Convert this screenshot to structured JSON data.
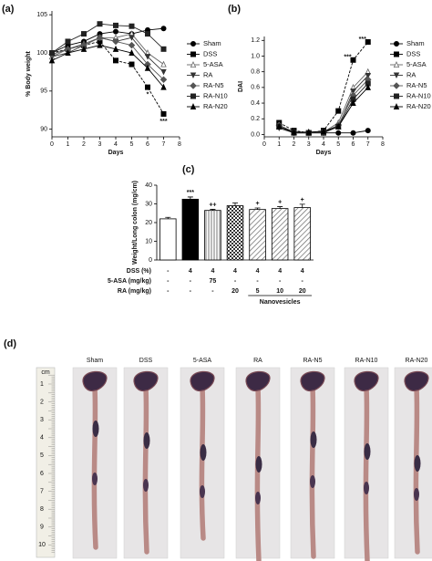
{
  "chart_data": [
    {
      "type": "line",
      "panel": "(a)",
      "xlabel": "Days",
      "ylabel": "% Body weight",
      "x": [
        0,
        1,
        2,
        3,
        4,
        5,
        6,
        7
      ],
      "xlim": [
        0,
        8
      ],
      "xticks": [
        0,
        1,
        2,
        3,
        4,
        5,
        6,
        7,
        8
      ],
      "ylim": [
        89,
        105.5
      ],
      "yticks": [
        90,
        95,
        100,
        105
      ],
      "series": [
        {
          "name": "Sham",
          "color": "#000000",
          "marker": "circle",
          "values": [
            100,
            101,
            101.5,
            102.5,
            102.8,
            102.5,
            103,
            103.2
          ]
        },
        {
          "name": "DSS",
          "color": "#000000",
          "marker": "square",
          "values": [
            100,
            100.5,
            101,
            101.5,
            99,
            98.5,
            95.5,
            92
          ],
          "annotations": [
            null,
            null,
            null,
            null,
            null,
            null,
            "*",
            "***"
          ]
        },
        {
          "name": "5-ASA",
          "color": "#666666",
          "marker": "triangle-open",
          "values": [
            99.5,
            100.5,
            101.2,
            102,
            102,
            102.5,
            100,
            98.5
          ]
        },
        {
          "name": "RA",
          "color": "#333333",
          "marker": "triangle-down",
          "values": [
            99.5,
            100,
            101,
            102,
            101.5,
            102,
            99.5,
            97.5
          ]
        },
        {
          "name": "RA-N5",
          "color": "#555555",
          "marker": "diamond",
          "values": [
            99.8,
            100.5,
            101,
            102,
            101.5,
            101,
            98.5,
            96.5
          ]
        },
        {
          "name": "RA-N10",
          "color": "#222222",
          "marker": "square",
          "values": [
            100,
            101.5,
            102.5,
            103.8,
            103.6,
            103.5,
            102.5,
            100.5
          ]
        },
        {
          "name": "RA-N20",
          "color": "#000000",
          "marker": "triangle",
          "values": [
            99,
            100,
            100.5,
            101,
            100.5,
            100,
            98,
            95.5
          ]
        }
      ]
    },
    {
      "type": "line",
      "panel": "(b)",
      "xlabel": "Days",
      "ylabel": "DAI",
      "x": [
        1,
        2,
        3,
        4,
        5,
        6,
        7
      ],
      "xlim": [
        0,
        8
      ],
      "xticks": [
        0,
        1,
        2,
        3,
        4,
        5,
        6,
        7,
        8
      ],
      "ylim": [
        -0.03,
        1.25
      ],
      "yticks": [
        {
          "value": 0,
          "label": "0.0"
        },
        0.2,
        0.4,
        0.6,
        0.8,
        {
          "value": 1,
          "label": "1.0"
        },
        1.2
      ],
      "series": [
        {
          "name": "Sham",
          "color": "#000000",
          "marker": "circle",
          "values": [
            0.1,
            0.02,
            0.02,
            0.02,
            0.02,
            0.02,
            0.05
          ]
        },
        {
          "name": "DSS",
          "color": "#000000",
          "marker": "square",
          "values": [
            0.15,
            0.05,
            0.02,
            0.05,
            0.3,
            0.95,
            1.18
          ],
          "annotations": [
            null,
            null,
            null,
            null,
            null,
            "***",
            "***"
          ]
        },
        {
          "name": "5-ASA",
          "color": "#666666",
          "marker": "triangle-open",
          "values": [
            0.1,
            0.03,
            0.02,
            0.03,
            0.15,
            0.6,
            0.8
          ]
        },
        {
          "name": "RA",
          "color": "#333333",
          "marker": "triangle-down",
          "values": [
            0.08,
            0.02,
            0.02,
            0.03,
            0.1,
            0.55,
            0.75
          ]
        },
        {
          "name": "RA-N5",
          "color": "#555555",
          "marker": "diamond",
          "values": [
            0.12,
            0.03,
            0.02,
            0.03,
            0.12,
            0.5,
            0.7
          ]
        },
        {
          "name": "RA-N10",
          "color": "#222222",
          "marker": "square",
          "values": [
            0.1,
            0.02,
            0.02,
            0.02,
            0.1,
            0.45,
            0.65
          ]
        },
        {
          "name": "RA-N20",
          "color": "#000000",
          "marker": "triangle",
          "values": [
            0.1,
            0.03,
            0.03,
            0.04,
            0.1,
            0.4,
            0.6
          ]
        }
      ]
    },
    {
      "type": "bar",
      "panel": "(c)",
      "ylabel": "Weight/Long colon (mg/cm)",
      "values": [
        22,
        32.5,
        26.5,
        29,
        27,
        27.5,
        28
      ],
      "errors": [
        0.8,
        1.2,
        0.6,
        1.5,
        0.8,
        1,
        1.8
      ],
      "annotations": [
        null,
        "***",
        "++",
        null,
        "+",
        "+",
        "+"
      ],
      "patterns": [
        "none",
        "solid",
        "vertical",
        "checker",
        "diagonal",
        "diagonal",
        "diagonal"
      ],
      "ylim": [
        0,
        40
      ],
      "yticks": [
        0,
        10,
        20,
        30,
        40
      ],
      "table": {
        "rows": [
          {
            "label": "DSS (%)",
            "cells": [
              "-",
              "4",
              "4",
              "4",
              "4",
              "4",
              "4"
            ]
          },
          {
            "label": "5-ASA (mg/kg)",
            "cells": [
              "-",
              "-",
              "75",
              "-",
              "-",
              "-",
              "-"
            ]
          },
          {
            "label": "RA (mg/kg)",
            "cells": [
              "-",
              "-",
              "-",
              "20",
              "5",
              "10",
              "20"
            ]
          }
        ],
        "group_label": "Nanovesicles"
      }
    }
  ],
  "photo": {
    "panel": "(d)",
    "labels": [
      "Sham",
      "DSS",
      "5-ASA",
      "RA",
      "RA-N5",
      "RA-N10",
      "RA-N20"
    ],
    "ruler_unit": "cm",
    "ruler_ticks": [
      1,
      2,
      3,
      4,
      5,
      6,
      7,
      8,
      9,
      10
    ]
  }
}
